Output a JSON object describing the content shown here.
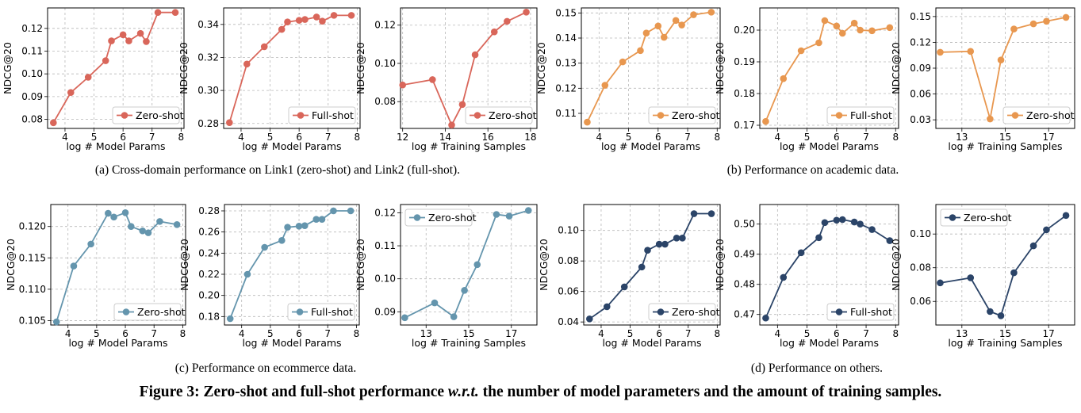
{
  "style": {
    "red": "#d9665a",
    "orange": "#e8974f",
    "blue": "#6495ad",
    "navy": "#2b4468"
  },
  "captions": {
    "a": "(a)  Cross-domain performance on Link1 (zero-shot) and Link2 (full-shot).",
    "b": "(b)  Performance on academic data.",
    "c": "(c)  Performance on ecommerce data.",
    "d": "(d)  Performance on others."
  },
  "figure_caption": {
    "prefix": "Figure 3: Zero-shot and full-shot performance ",
    "italic": "w.r.t.",
    "suffix": " the number of model parameters and the amount of training samples."
  },
  "chart_data": [
    {
      "id": "a1",
      "type": "line",
      "color": "red",
      "xlabel": "log # Model Params",
      "ylabel": "NDCG@20",
      "legend": "Zero-shot",
      "legend_pos": "lower-right",
      "xlim": [
        3.4,
        8.1
      ],
      "ylim": [
        0.076,
        0.129
      ],
      "xticks": [
        "4",
        "5",
        "6",
        "7",
        "8"
      ],
      "yticks": [
        "0.08",
        "0.09",
        "0.10",
        "0.11",
        "0.12"
      ],
      "x": [
        3.6,
        4.2,
        4.8,
        5.4,
        5.6,
        6.0,
        6.2,
        6.6,
        6.8,
        7.2,
        7.8
      ],
      "y": [
        0.0785,
        0.0918,
        0.0985,
        0.1058,
        0.1145,
        0.1172,
        0.1145,
        0.1178,
        0.1142,
        0.127,
        0.127
      ]
    },
    {
      "id": "a2",
      "type": "line",
      "color": "red",
      "xlabel": "log # Model Params",
      "ylabel": "NDCG@20",
      "legend": "Full-shot",
      "legend_pos": "lower-right",
      "xlim": [
        3.4,
        8.1
      ],
      "ylim": [
        0.277,
        0.35
      ],
      "xticks": [
        "4",
        "5",
        "6",
        "7",
        "8"
      ],
      "yticks": [
        "0.28",
        "0.30",
        "0.32",
        "0.34"
      ],
      "x": [
        3.6,
        4.2,
        4.8,
        5.4,
        5.6,
        6.0,
        6.2,
        6.6,
        6.8,
        7.2,
        7.8
      ],
      "y": [
        0.2805,
        0.316,
        0.3265,
        0.337,
        0.3415,
        0.3425,
        0.343,
        0.3445,
        0.342,
        0.3455,
        0.3455
      ]
    },
    {
      "id": "a3",
      "type": "line",
      "color": "red",
      "xlabel": "log # Training Samples",
      "ylabel": "NDCG@20",
      "legend": "Zero-shot",
      "legend_pos": "lower-right",
      "xlim": [
        11.9,
        18.3
      ],
      "ylim": [
        0.066,
        0.129
      ],
      "xticks": [
        "12",
        "14",
        "16",
        "18"
      ],
      "yticks": [
        "0.08",
        "0.10",
        "0.12"
      ],
      "x": [
        12.0,
        13.4,
        14.3,
        14.8,
        15.4,
        16.3,
        16.9,
        17.8
      ],
      "y": [
        0.0887,
        0.0915,
        0.0678,
        0.0785,
        0.1045,
        0.1165,
        0.122,
        0.1268
      ]
    },
    {
      "id": "b1",
      "type": "line",
      "color": "orange",
      "xlabel": "log # Model Params",
      "ylabel": "NDCG@20",
      "legend": "Zero-shot",
      "legend_pos": "lower-right",
      "xlim": [
        3.4,
        8.1
      ],
      "ylim": [
        0.104,
        0.152
      ],
      "xticks": [
        "4",
        "5",
        "6",
        "7",
        "8"
      ],
      "yticks": [
        "0.11",
        "0.12",
        "0.13",
        "0.14",
        "0.15"
      ],
      "x": [
        3.6,
        4.2,
        4.8,
        5.4,
        5.6,
        6.0,
        6.2,
        6.6,
        6.8,
        7.2,
        7.8
      ],
      "y": [
        0.1065,
        0.1212,
        0.1305,
        0.135,
        0.142,
        0.1448,
        0.1403,
        0.147,
        0.1452,
        0.1493,
        0.1503
      ]
    },
    {
      "id": "b2",
      "type": "line",
      "color": "orange",
      "xlabel": "log # Model Params",
      "ylabel": "NDCG@20",
      "legend": "Full-shot",
      "legend_pos": "lower-right",
      "xlim": [
        3.4,
        8.1
      ],
      "ylim": [
        0.169,
        0.207
      ],
      "xticks": [
        "4",
        "5",
        "6",
        "7",
        "8"
      ],
      "yticks": [
        "0.17",
        "0.18",
        "0.19",
        "0.20"
      ],
      "x": [
        3.6,
        4.2,
        4.8,
        5.4,
        5.6,
        6.0,
        6.2,
        6.6,
        6.8,
        7.2,
        7.8
      ],
      "y": [
        0.1712,
        0.1847,
        0.1935,
        0.196,
        0.203,
        0.2013,
        0.199,
        0.2022,
        0.2,
        0.1998,
        0.2008
      ]
    },
    {
      "id": "b3",
      "type": "line",
      "color": "orange",
      "xlabel": "log # Training Samples",
      "ylabel": "NDCG@20",
      "legend": "Zero-shot",
      "legend_pos": "lower-right",
      "xlim": [
        11.8,
        18.2
      ],
      "ylim": [
        0.02,
        0.16
      ],
      "xticks": [
        "13",
        "15",
        "17"
      ],
      "yticks": [
        "0.03",
        "0.06",
        "0.09",
        "0.12",
        "0.15"
      ],
      "x": [
        12.0,
        13.4,
        14.3,
        14.8,
        15.4,
        16.3,
        16.9,
        17.8
      ],
      "y": [
        0.1085,
        0.1095,
        0.031,
        0.0995,
        0.1355,
        0.1415,
        0.1445,
        0.149
      ]
    },
    {
      "id": "c1",
      "type": "line",
      "color": "blue",
      "xlabel": "log # Model Params",
      "ylabel": "NDCG@20",
      "legend": "Zero-shot",
      "legend_pos": "lower-right",
      "xlim": [
        3.4,
        8.1
      ],
      "ylim": [
        0.1043,
        0.1235
      ],
      "xticks": [
        "4",
        "5",
        "6",
        "7",
        "8"
      ],
      "yticks": [
        "0.105",
        "0.110",
        "0.115",
        "0.120"
      ],
      "x": [
        3.6,
        4.2,
        4.8,
        5.4,
        5.6,
        6.0,
        6.2,
        6.6,
        6.8,
        7.2,
        7.8
      ],
      "y": [
        0.1048,
        0.1137,
        0.1172,
        0.1221,
        0.1215,
        0.1222,
        0.12,
        0.1193,
        0.119,
        0.1208,
        0.1203
      ]
    },
    {
      "id": "c2",
      "type": "line",
      "color": "blue",
      "xlabel": "log # Model Params",
      "ylabel": "NDCG@20",
      "legend": "Full-shot",
      "legend_pos": "lower-right",
      "xlim": [
        3.4,
        8.1
      ],
      "ylim": [
        0.172,
        0.286
      ],
      "xticks": [
        "4",
        "5",
        "6",
        "7",
        "8"
      ],
      "yticks": [
        "0.18",
        "0.20",
        "0.22",
        "0.24",
        "0.26",
        "0.28"
      ],
      "x": [
        3.6,
        4.2,
        4.8,
        5.4,
        5.6,
        6.0,
        6.2,
        6.6,
        6.8,
        7.2,
        7.8
      ],
      "y": [
        0.178,
        0.22,
        0.2455,
        0.252,
        0.2645,
        0.2655,
        0.266,
        0.272,
        0.272,
        0.28,
        0.28
      ]
    },
    {
      "id": "c3",
      "type": "line",
      "color": "blue",
      "xlabel": "log # Training Samples",
      "ylabel": "NDCG@20",
      "legend": "Zero-shot",
      "legend_pos": "top-left",
      "xlim": [
        11.8,
        18.2
      ],
      "ylim": [
        0.086,
        0.1225
      ],
      "xticks": [
        "13",
        "15",
        "17"
      ],
      "yticks": [
        "0.09",
        "0.10",
        "0.11",
        "0.12"
      ],
      "x": [
        12.0,
        13.4,
        14.3,
        14.8,
        15.4,
        16.3,
        16.9,
        17.8
      ],
      "y": [
        0.0882,
        0.0927,
        0.0885,
        0.0965,
        0.1043,
        0.1195,
        0.119,
        0.1207
      ]
    },
    {
      "id": "d1",
      "type": "line",
      "color": "navy",
      "xlabel": "log # Model Params",
      "ylabel": "NDCG@20",
      "legend": "Zero-shot",
      "legend_pos": "lower-right",
      "xlim": [
        3.4,
        8.1
      ],
      "ylim": [
        0.038,
        0.117
      ],
      "xticks": [
        "4",
        "5",
        "6",
        "7",
        "8"
      ],
      "yticks": [
        "0.04",
        "0.06",
        "0.08",
        "0.10"
      ],
      "x": [
        3.6,
        4.2,
        4.8,
        5.4,
        5.6,
        6.0,
        6.2,
        6.6,
        6.8,
        7.2,
        7.8
      ],
      "y": [
        0.042,
        0.05,
        0.063,
        0.076,
        0.087,
        0.091,
        0.091,
        0.095,
        0.095,
        0.111,
        0.111
      ]
    },
    {
      "id": "d2",
      "type": "line",
      "color": "navy",
      "xlabel": "log # Model Params",
      "ylabel": "NDCG@20",
      "legend": "Full-shot",
      "legend_pos": "lower-right",
      "xlim": [
        3.4,
        8.1
      ],
      "ylim": [
        0.4665,
        0.5065
      ],
      "xticks": [
        "4",
        "5",
        "6",
        "7",
        "8"
      ],
      "yticks": [
        "0.47",
        "0.48",
        "0.49",
        "0.50"
      ],
      "x": [
        3.6,
        4.2,
        4.8,
        5.4,
        5.6,
        6.0,
        6.2,
        6.6,
        6.8,
        7.2,
        7.8
      ],
      "y": [
        0.4688,
        0.4823,
        0.4905,
        0.4955,
        0.5005,
        0.5013,
        0.5015,
        0.5007,
        0.5,
        0.4982,
        0.4945
      ]
    },
    {
      "id": "d3",
      "type": "line",
      "color": "navy",
      "xlabel": "log # Training Samples",
      "ylabel": "NDCG@20",
      "legend": "Zero-shot",
      "legend_pos": "top-left",
      "xlim": [
        11.8,
        18.2
      ],
      "ylim": [
        0.046,
        0.1175
      ],
      "xticks": [
        "13",
        "15",
        "17"
      ],
      "yticks": [
        "0.06",
        "0.08",
        "0.10"
      ],
      "x": [
        12.0,
        13.4,
        14.3,
        14.8,
        15.4,
        16.3,
        16.9,
        17.8
      ],
      "y": [
        0.071,
        0.074,
        0.054,
        0.0515,
        0.077,
        0.093,
        0.1025,
        0.111
      ]
    }
  ]
}
